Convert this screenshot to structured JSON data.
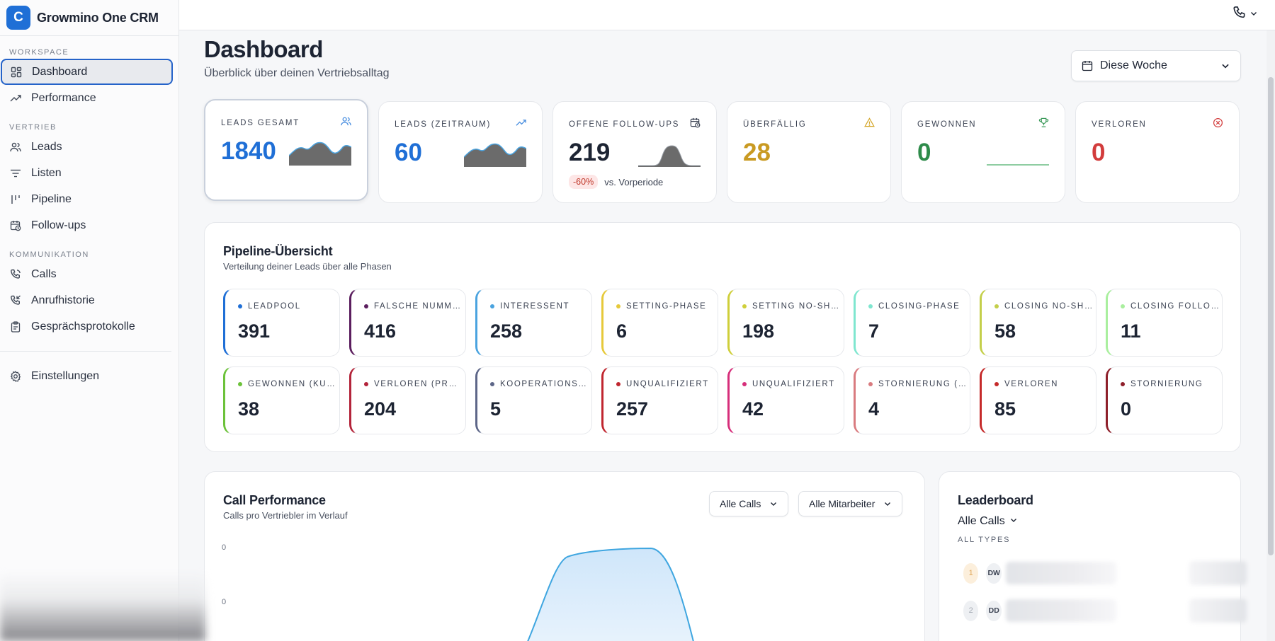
{
  "app": {
    "logo_letter": "C",
    "name": "Growmino One CRM"
  },
  "sidebar": {
    "sections": {
      "workspace": "WORKSPACE",
      "vertrieb": "VERTRIEB",
      "kommunikation": "KOMMUNIKATION"
    },
    "items": {
      "dashboard": "Dashboard",
      "performance": "Performance",
      "leads": "Leads",
      "listen": "Listen",
      "pipeline": "Pipeline",
      "followups": "Follow-ups",
      "calls": "Calls",
      "anrufhistorie": "Anrufhistorie",
      "protokolle": "Gesprächsprotokolle",
      "einstellungen": "Einstellungen"
    },
    "active": "Dashboard"
  },
  "header": {
    "title": "Dashboard",
    "subtitle": "Überblick über deinen Vertriebsalltag",
    "period": "Diese Woche"
  },
  "kpis": [
    {
      "label": "LEADS GESAMT",
      "value": "1840",
      "color": "#1f6fd6",
      "icon": "users-icon"
    },
    {
      "label": "LEADS (ZEITRAUM)",
      "value": "60",
      "color": "#1f6fd6",
      "icon": "trending-up-icon"
    },
    {
      "label": "OFFENE FOLLOW-UPS",
      "value": "219",
      "color": "#1d2433",
      "icon": "calendar-clock-icon",
      "badge": "-60%",
      "badge_note": "vs. Vorperiode"
    },
    {
      "label": "ÜBERFÄLLIG",
      "value": "28",
      "color": "#c99a22",
      "icon": "warning-icon"
    },
    {
      "label": "GEWONNEN",
      "value": "0",
      "color": "#2e8b4a",
      "icon": "trophy-icon"
    },
    {
      "label": "VERLOREN",
      "value": "0",
      "color": "#d23c3c",
      "icon": "x-circle-icon"
    }
  ],
  "pipeline": {
    "title": "Pipeline-Übersicht",
    "subtitle": "Verteilung deiner Leads über alle Phasen",
    "phases": [
      {
        "label": "LEADPOOL",
        "value": "391",
        "color": "#1f6fd6"
      },
      {
        "label": "FALSCHE NUMMER",
        "value": "416",
        "color": "#5b1e5e"
      },
      {
        "label": "INTERESSENT",
        "value": "258",
        "color": "#4aa3df"
      },
      {
        "label": "SETTING-PHASE",
        "value": "6",
        "color": "#e6c93a"
      },
      {
        "label": "SETTING NO-SHOW",
        "value": "198",
        "color": "#cfcf3a"
      },
      {
        "label": "CLOSING-PHASE",
        "value": "7",
        "color": "#7fe6cf"
      },
      {
        "label": "CLOSING NO-SHOW",
        "value": "58",
        "color": "#c4cf4a"
      },
      {
        "label": "CLOSING FOLLOW-UP",
        "value": "11",
        "color": "#a9ef9e"
      },
      {
        "label": "GEWONNEN (KUNDE)",
        "value": "38",
        "color": "#6cc23a"
      },
      {
        "label": "VERLOREN (PREIS)",
        "value": "204",
        "color": "#b3243a"
      },
      {
        "label": "KOOPERATIONSPARTNER",
        "value": "5",
        "color": "#5d6688"
      },
      {
        "label": "UNQUALIFIZIERT",
        "value": "257",
        "color": "#c0262f"
      },
      {
        "label": "UNQUALIFIZIERT",
        "value": "42",
        "color": "#d62e7a"
      },
      {
        "label": "STORNIERUNG (...)",
        "value": "4",
        "color": "#d97b7f"
      },
      {
        "label": "VERLOREN",
        "value": "85",
        "color": "#c52a2a"
      },
      {
        "label": "STORNIERUNG",
        "value": "0",
        "color": "#8e1f2a"
      }
    ]
  },
  "call_performance": {
    "title": "Call Performance",
    "subtitle": "Calls pro Vertriebler im Verlauf",
    "filter_calls": "Alle Calls",
    "filter_staff": "Alle Mitarbeiter",
    "ticks": [
      "0",
      "0"
    ]
  },
  "leaderboard": {
    "title": "Leaderboard",
    "filter": "Alle Calls",
    "caption": "ALL TYPES",
    "rows": [
      {
        "rank": "1",
        "initials": "DW"
      },
      {
        "rank": "2",
        "initials": "DD"
      }
    ]
  }
}
